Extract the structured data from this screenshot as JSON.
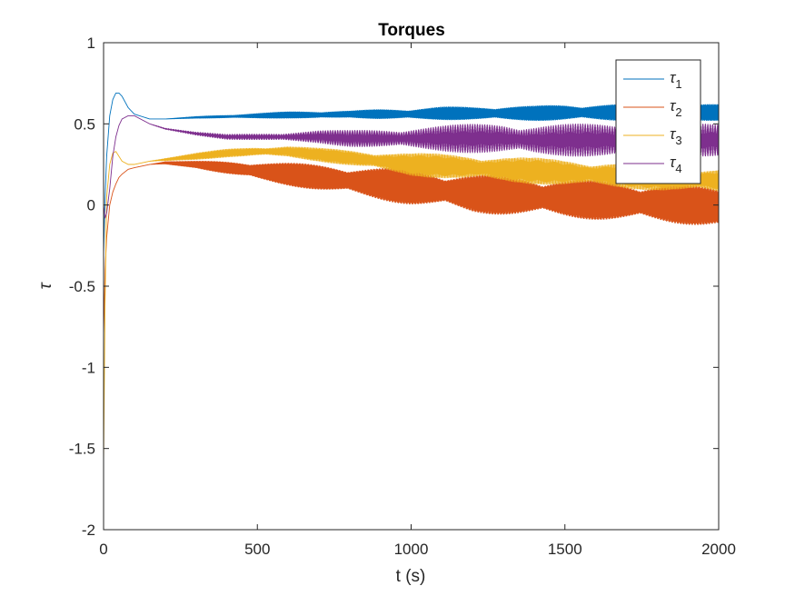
{
  "chart_data": {
    "type": "line",
    "title": "Torques",
    "xlabel": "t (s)",
    "ylabel": "τ",
    "xlim": [
      0,
      2000
    ],
    "ylim": [
      -2,
      1
    ],
    "xticks": [
      0,
      500,
      1000,
      1500,
      2000
    ],
    "yticks": [
      -2,
      -1.5,
      -1,
      -0.5,
      0,
      0.5,
      1
    ],
    "xtick_labels": [
      "0",
      "500",
      "1000",
      "1500",
      "2000"
    ],
    "ytick_labels": [
      "-2",
      "-1.5",
      "-1",
      "-0.5",
      "0",
      "0.5",
      "1"
    ],
    "grid": false,
    "legend_position": "top-right",
    "series": [
      {
        "name": "τ1",
        "name_base": "τ",
        "name_sub": "1",
        "color": "#0072BD",
        "x": [
          0,
          5,
          10,
          20,
          30,
          40,
          50,
          60,
          80,
          100,
          150,
          200,
          300,
          400,
          500,
          600,
          700,
          800,
          900,
          1000,
          1100,
          1200,
          1300,
          1400,
          1500,
          1600,
          1700,
          1800,
          1900,
          2000
        ],
        "y": [
          -0.3,
          0.05,
          0.3,
          0.55,
          0.65,
          0.69,
          0.69,
          0.67,
          0.6,
          0.56,
          0.53,
          0.53,
          0.54,
          0.545,
          0.55,
          0.555,
          0.555,
          0.56,
          0.56,
          0.56,
          0.565,
          0.565,
          0.565,
          0.565,
          0.57,
          0.57,
          0.57,
          0.57,
          0.57,
          0.57
        ],
        "amp": [
          0,
          0,
          0,
          0,
          0,
          0,
          0,
          0,
          0,
          0,
          0,
          0,
          0.005,
          0.01,
          0.015,
          0.02,
          0.025,
          0.02,
          0.03,
          0.035,
          0.04,
          0.04,
          0.045,
          0.045,
          0.05,
          0.05,
          0.05,
          0.05,
          0.05,
          0.05
        ]
      },
      {
        "name": "τ2",
        "name_base": "τ",
        "name_sub": "2",
        "color": "#D95319",
        "x": [
          0,
          5,
          10,
          20,
          30,
          40,
          50,
          60,
          80,
          100,
          150,
          200,
          300,
          400,
          500,
          600,
          700,
          800,
          900,
          1000,
          1100,
          1200,
          1300,
          1400,
          1500,
          1600,
          1700,
          1800,
          1900,
          2000
        ],
        "y": [
          -0.8,
          -0.4,
          -0.2,
          0.0,
          0.08,
          0.13,
          0.17,
          0.19,
          0.22,
          0.23,
          0.25,
          0.26,
          0.25,
          0.23,
          0.21,
          0.19,
          0.17,
          0.15,
          0.13,
          0.11,
          0.09,
          0.07,
          0.06,
          0.05,
          0.04,
          0.03,
          0.02,
          0.01,
          0.0,
          -0.01
        ],
        "amp": [
          0,
          0,
          0,
          0,
          0,
          0,
          0,
          0,
          0,
          0,
          0,
          0.01,
          0.02,
          0.04,
          0.06,
          0.07,
          0.08,
          0.09,
          0.1,
          0.11,
          0.11,
          0.12,
          0.12,
          0.12,
          0.12,
          0.12,
          0.12,
          0.12,
          0.12,
          0.12
        ]
      },
      {
        "name": "τ3",
        "name_base": "τ",
        "name_sub": "3",
        "color": "#EDB120",
        "x": [
          0,
          5,
          10,
          20,
          30,
          40,
          50,
          60,
          80,
          100,
          150,
          200,
          300,
          400,
          500,
          600,
          700,
          800,
          900,
          1000,
          1100,
          1200,
          1300,
          1400,
          1500,
          1600,
          1700,
          1800,
          1900,
          2000
        ],
        "y": [
          -1.6,
          -0.6,
          0.05,
          0.25,
          0.32,
          0.33,
          0.3,
          0.27,
          0.25,
          0.25,
          0.27,
          0.28,
          0.3,
          0.32,
          0.33,
          0.33,
          0.31,
          0.29,
          0.27,
          0.25,
          0.24,
          0.23,
          0.22,
          0.21,
          0.2,
          0.19,
          0.18,
          0.17,
          0.16,
          0.15
        ],
        "amp": [
          0,
          0,
          0,
          0,
          0,
          0,
          0,
          0,
          0,
          0,
          0,
          0.01,
          0.02,
          0.025,
          0.03,
          0.035,
          0.04,
          0.05,
          0.06,
          0.07,
          0.075,
          0.08,
          0.08,
          0.08,
          0.08,
          0.08,
          0.08,
          0.08,
          0.08,
          0.08
        ]
      },
      {
        "name": "τ4",
        "name_base": "τ",
        "name_sub": "4",
        "color": "#7E2F8E",
        "x": [
          0,
          5,
          10,
          20,
          30,
          40,
          50,
          60,
          80,
          100,
          150,
          200,
          300,
          400,
          500,
          600,
          700,
          800,
          900,
          1000,
          1100,
          1200,
          1300,
          1400,
          1500,
          1600,
          1700,
          1800,
          1900,
          2000
        ],
        "y": [
          0.0,
          -0.08,
          -0.05,
          0.1,
          0.3,
          0.42,
          0.49,
          0.53,
          0.55,
          0.55,
          0.5,
          0.47,
          0.44,
          0.42,
          0.42,
          0.42,
          0.42,
          0.41,
          0.41,
          0.41,
          0.41,
          0.41,
          0.41,
          0.4,
          0.4,
          0.4,
          0.4,
          0.4,
          0.4,
          0.4
        ],
        "amp": [
          0,
          0,
          0,
          0,
          0,
          0,
          0,
          0,
          0,
          0,
          0,
          0.005,
          0.01,
          0.015,
          0.02,
          0.03,
          0.04,
          0.05,
          0.06,
          0.07,
          0.08,
          0.09,
          0.1,
          0.1,
          0.1,
          0.1,
          0.1,
          0.1,
          0.1,
          0.1
        ]
      }
    ]
  }
}
